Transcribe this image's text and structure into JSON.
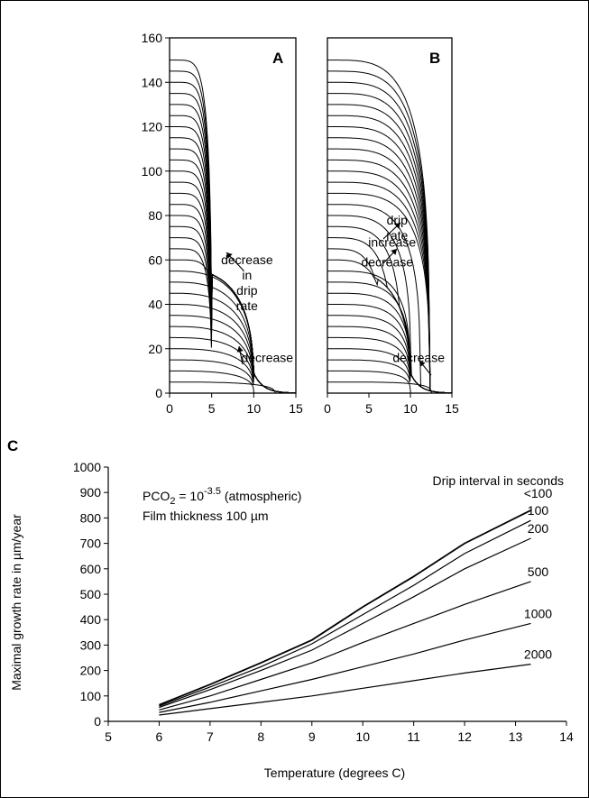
{
  "figure_labels": [
    "A",
    "B",
    "C"
  ],
  "chart_data": [
    {
      "type": "line",
      "panel": "A",
      "xlim": [
        0,
        15
      ],
      "ylim": [
        0,
        160
      ],
      "xticks": [
        0,
        5,
        10,
        15
      ],
      "yticks": [
        0,
        20,
        40,
        60,
        80,
        100,
        120,
        140,
        160
      ],
      "profile_heights": [
        0,
        5,
        10,
        15,
        20,
        25,
        30,
        35,
        40,
        45,
        50,
        55,
        60,
        65,
        70,
        75,
        80,
        85,
        90,
        95,
        100,
        105,
        110,
        115,
        120,
        125,
        130,
        135,
        140,
        145,
        150
      ],
      "annotations": [
        {
          "text": "decrease in drip rate",
          "lines": [
            "decrease",
            "in",
            "drip",
            "rate"
          ],
          "x": 9.2,
          "y": 58
        },
        {
          "text": "decrease",
          "lines": [
            "decrease"
          ],
          "x": 11.6,
          "y": 14
        }
      ]
    },
    {
      "type": "line",
      "panel": "B",
      "xlim": [
        0,
        15
      ],
      "ylim": [
        0,
        160
      ],
      "xticks": [
        0,
        5,
        10,
        15
      ],
      "yticks": [],
      "profile_heights": [
        0,
        5,
        10,
        15,
        20,
        25,
        30,
        35,
        40,
        45,
        50,
        55,
        60,
        65,
        70,
        75,
        80,
        85,
        90,
        95,
        100,
        105,
        110,
        115,
        120,
        125,
        130,
        135,
        140,
        145,
        150
      ],
      "annotations": [
        {
          "text": "drip rate",
          "lines": [
            "drip",
            "rate"
          ],
          "x": 8.4,
          "y": 76
        },
        {
          "text": "increase",
          "lines": [
            "increase"
          ],
          "x": 7.8,
          "y": 66
        },
        {
          "text": "decrease",
          "lines": [
            "decrease"
          ],
          "x": 7.2,
          "y": 57
        },
        {
          "text": "decrease",
          "lines": [
            "decrease"
          ],
          "x": 11.0,
          "y": 14
        }
      ]
    },
    {
      "type": "line",
      "panel": "C",
      "xlabel": "Temperature (degrees C)",
      "ylabel": "Maximal growth rate in µm/year",
      "xlim": [
        5,
        14
      ],
      "ylim": [
        0,
        1000
      ],
      "xticks": [
        5,
        6,
        7,
        8,
        9,
        10,
        11,
        12,
        13,
        14
      ],
      "yticks": [
        0,
        100,
        200,
        300,
        400,
        500,
        600,
        700,
        800,
        900,
        1000
      ],
      "legend_title": "Drip interval in seconds",
      "notes": [
        "PCO",
        "2",
        " = 10",
        "-3.5",
        " (atmospheric)",
        "Film thickness 100 µm"
      ],
      "x": [
        6,
        7,
        8,
        9,
        10,
        11,
        12,
        13.3
      ],
      "series": [
        {
          "name": "<100",
          "values": [
            65,
            145,
            230,
            320,
            450,
            570,
            700,
            830
          ]
        },
        {
          "name": "100",
          "values": [
            60,
            135,
            215,
            305,
            420,
            535,
            660,
            790
          ]
        },
        {
          "name": "200",
          "values": [
            55,
            125,
            200,
            280,
            385,
            490,
            600,
            720
          ]
        },
        {
          "name": "500",
          "values": [
            45,
            100,
            165,
            230,
            310,
            385,
            460,
            550
          ]
        },
        {
          "name": "1000",
          "values": [
            35,
            75,
            120,
            165,
            215,
            265,
            320,
            385
          ]
        },
        {
          "name": "2000",
          "values": [
            25,
            50,
            75,
            100,
            130,
            160,
            190,
            225
          ]
        }
      ]
    }
  ]
}
